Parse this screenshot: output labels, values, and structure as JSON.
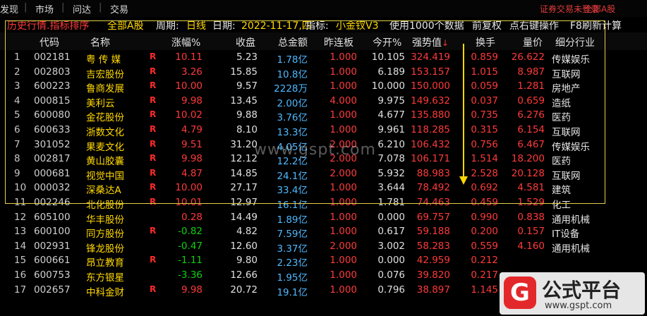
{
  "menu": {
    "items": [
      "发现",
      "市场",
      "问达",
      "交易"
    ],
    "login_status": "证券交易未登录",
    "all_a": "全部A股"
  },
  "title": {
    "mode": "历史行情.指标排序",
    "scope": "全部A股",
    "period_label": "周期:",
    "period_value": "日线",
    "date_label": "日期:",
    "date_value": "2022-11-17,四",
    "indicator_label": "指标:",
    "indicator_value": "小金钗V3",
    "note1": "使用1000个数据",
    "note2": "前复权",
    "note3": "点右键操作",
    "note4": "F8刷新计算"
  },
  "columns": {
    "code": "代码",
    "name": "名称",
    "pct": "涨幅%",
    "close": "收盘",
    "amount": "总金额",
    "zlb": "昨连板",
    "open_pct": "今开%",
    "strength": "强势值",
    "strength_sort": "↓",
    "turnover": "换手",
    "ratio": "量价",
    "industry": "细分行业"
  },
  "rows": [
    {
      "idx": "1",
      "code": "002181",
      "name": "粤 传 媒",
      "flag": "R",
      "pct": "10.11",
      "close": "5.23",
      "amount": "1.78亿",
      "zlb": "1.000",
      "open": "10.105",
      "strength": "324.419",
      "turnover": "0.859",
      "ratio": "26.622",
      "industry": "传媒娱乐",
      "dir": "up"
    },
    {
      "idx": "2",
      "code": "002803",
      "name": "吉宏股份",
      "flag": "R",
      "pct": "3.26",
      "close": "15.85",
      "amount": "10.8亿",
      "zlb": "1.000",
      "open": "6.189",
      "strength": "153.157",
      "turnover": "1.015",
      "ratio": "8.987",
      "industry": "互联网",
      "dir": "up"
    },
    {
      "idx": "3",
      "code": "600223",
      "name": "鲁商发展",
      "flag": "R",
      "pct": "10.00",
      "close": "9.57",
      "amount": "2228万",
      "zlb": "1.000",
      "open": "10.000",
      "strength": "150.000",
      "turnover": "0.059",
      "ratio": "1.281",
      "industry": "房地产",
      "dir": "up"
    },
    {
      "idx": "4",
      "code": "000815",
      "name": "美利云",
      "flag": "R",
      "pct": "9.98",
      "close": "13.45",
      "amount": "2.00亿",
      "zlb": "4.000",
      "open": "9.975",
      "strength": "149.632",
      "turnover": "0.037",
      "ratio": "0.659",
      "industry": "造纸",
      "dir": "up"
    },
    {
      "idx": "5",
      "code": "600080",
      "name": "金花股份",
      "flag": "R",
      "pct": "10.02",
      "close": "9.88",
      "amount": "3.76亿",
      "zlb": "1.000",
      "open": "4.677",
      "strength": "135.880",
      "turnover": "0.735",
      "ratio": "6.276",
      "industry": "医药",
      "dir": "up"
    },
    {
      "idx": "6",
      "code": "600633",
      "name": "浙数文化",
      "flag": "R",
      "pct": "4.79",
      "close": "8.10",
      "amount": "13.3亿",
      "zlb": "1.000",
      "open": "9.961",
      "strength": "118.285",
      "turnover": "0.315",
      "ratio": "6.154",
      "industry": "互联网",
      "dir": "up"
    },
    {
      "idx": "7",
      "code": "301052",
      "name": "果麦文化",
      "flag": "R",
      "pct": "9.51",
      "close": "31.20",
      "amount": "4.05亿",
      "zlb": "2.000",
      "open": "6.210",
      "strength": "106.432",
      "turnover": "0.756",
      "ratio": "6.467",
      "industry": "传媒娱乐",
      "dir": "up"
    },
    {
      "idx": "8",
      "code": "002817",
      "name": "黄山胶囊",
      "flag": "R",
      "pct": "9.98",
      "close": "12.12",
      "amount": "12.2亿",
      "zlb": "2.000",
      "open": "7.078",
      "strength": "106.171",
      "turnover": "1.514",
      "ratio": "18.200",
      "industry": "医药",
      "dir": "up"
    },
    {
      "idx": "9",
      "code": "000681",
      "name": "视觉中国",
      "flag": "R",
      "pct": "4.87",
      "close": "14.85",
      "amount": "24.1亿",
      "zlb": "2.000",
      "open": "5.932",
      "strength": "88.983",
      "turnover": "2.528",
      "ratio": "20.128",
      "industry": "互联网",
      "dir": "up"
    },
    {
      "idx": "10",
      "code": "000032",
      "name": "深桑达A",
      "flag": "R",
      "pct": "10.00",
      "close": "27.17",
      "amount": "33.4亿",
      "zlb": "1.000",
      "open": "3.644",
      "strength": "78.492",
      "turnover": "0.692",
      "ratio": "4.581",
      "industry": "建筑",
      "dir": "up"
    },
    {
      "idx": "11",
      "code": "002246",
      "name": "北化股份",
      "flag": "R",
      "pct": "10.01",
      "close": "12.97",
      "amount": "16.1亿",
      "zlb": "1.000",
      "open": "1.781",
      "strength": "74.463",
      "turnover": "0.459",
      "ratio": "1.529",
      "industry": "化工",
      "dir": "up"
    },
    {
      "idx": "12",
      "code": "605100",
      "name": "华丰股份",
      "flag": "",
      "pct": "0.28",
      "close": "14.49",
      "amount": "1.89亿",
      "zlb": "1.000",
      "open": "0.000",
      "strength": "69.757",
      "turnover": "0.990",
      "ratio": "0.838",
      "industry": "通用机械",
      "dir": "up"
    },
    {
      "idx": "13",
      "code": "600100",
      "name": "同方股份",
      "flag": "R",
      "pct": "-0.82",
      "close": "4.82",
      "amount": "7.59亿",
      "zlb": "1.000",
      "open": "0.617",
      "strength": "59.188",
      "turnover": "0.200",
      "ratio": "0.157",
      "industry": "IT设备",
      "dir": "down"
    },
    {
      "idx": "14",
      "code": "002931",
      "name": "锋龙股份",
      "flag": "",
      "pct": "-0.47",
      "close": "12.60",
      "amount": "3.37亿",
      "zlb": "2.000",
      "open": "3.002",
      "strength": "58.283",
      "turnover": "0.559",
      "ratio": "4.160",
      "industry": "通用机械",
      "dir": "down"
    },
    {
      "idx": "15",
      "code": "600661",
      "name": "昂立教育",
      "flag": "R",
      "pct": "-1.11",
      "close": "9.80",
      "amount": "2.23亿",
      "zlb": "1.000",
      "open": "0.000",
      "strength": "42.959",
      "turnover": "0.212",
      "ratio": "",
      "industry": "",
      "dir": "down"
    },
    {
      "idx": "16",
      "code": "600753",
      "name": "东方银星",
      "flag": "",
      "pct": "-3.36",
      "close": "12.66",
      "amount": "1.95亿",
      "zlb": "1.000",
      "open": "0.076",
      "strength": "39.820",
      "turnover": "0.217",
      "ratio": "",
      "industry": "",
      "dir": "down"
    },
    {
      "idx": "17",
      "code": "002657",
      "name": "中科金财",
      "flag": "R",
      "pct": "9.98",
      "close": "20.72",
      "amount": "19.1亿",
      "zlb": "1.000",
      "open": "0.796",
      "strength": "38.897",
      "turnover": "1.145",
      "ratio": "",
      "industry": "",
      "dir": "up"
    }
  ],
  "watermark": "www.gspt.com",
  "logo": {
    "badge": "G",
    "title": "公式平台",
    "url": "www.gspt.com"
  },
  "colors": {
    "up": "#ff3a3a",
    "down": "#10d010",
    "name": "#ffd800",
    "amount": "#4fb8ff",
    "highlight_box": "#e3d04a"
  }
}
